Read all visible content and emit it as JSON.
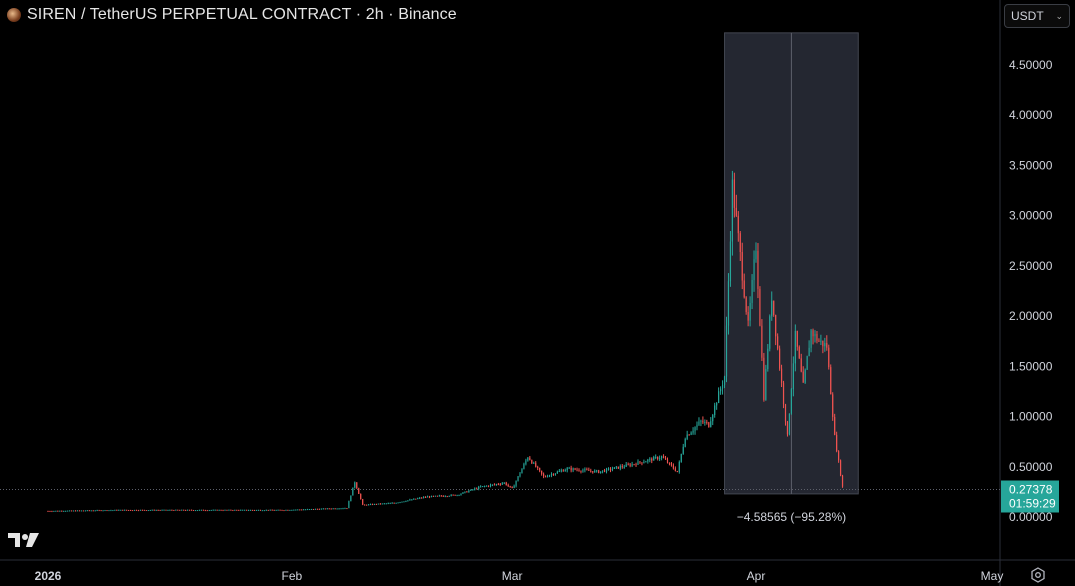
{
  "header": {
    "title": "SIREN / TetherUS PERPETUAL CONTRACT · 2h · Binance",
    "logo_icon": "siren-coin-icon"
  },
  "currency_select": {
    "value": "USDT",
    "icon": "chevron-down-icon"
  },
  "colors": {
    "background": "#000000",
    "up": "#26a69a",
    "down": "#ef5350",
    "measure_fill": "#2a2e39",
    "last_price_badge": "#26a69a"
  },
  "chart_data": {
    "type": "candlestick",
    "symbol": "SIREN / TetherUS PERPETUAL CONTRACT",
    "interval": "2h",
    "exchange": "Binance",
    "y_axis": {
      "ticks": [
        "4.50000",
        "4.00000",
        "3.50000",
        "3.00000",
        "2.50000",
        "2.00000",
        "1.50000",
        "1.00000",
        "0.50000",
        "0.00000"
      ],
      "range": [
        -0.05,
        4.8
      ]
    },
    "x_axis": {
      "labels": [
        "2026",
        "Feb",
        "Mar",
        "Apr",
        "May"
      ],
      "range": [
        "2026-01-01",
        "2026-05-01"
      ]
    },
    "series_path": [
      [
        "2026-01-01",
        0.06
      ],
      [
        "2026-01-10",
        0.07
      ],
      [
        "2026-01-20",
        0.07
      ],
      [
        "2026-01-31",
        0.07
      ],
      [
        "2026-02-08",
        0.09
      ],
      [
        "2026-02-09",
        0.35
      ],
      [
        "2026-02-10",
        0.12
      ],
      [
        "2026-02-14",
        0.14
      ],
      [
        "2026-02-18",
        0.2
      ],
      [
        "2026-02-22",
        0.22
      ],
      [
        "2026-02-25",
        0.3
      ],
      [
        "2026-02-28",
        0.34
      ],
      [
        "2026-03-01",
        0.28
      ],
      [
        "2026-03-03",
        0.6
      ],
      [
        "2026-03-05",
        0.4
      ],
      [
        "2026-03-08",
        0.48
      ],
      [
        "2026-03-12",
        0.45
      ],
      [
        "2026-03-16",
        0.52
      ],
      [
        "2026-03-20",
        0.6
      ],
      [
        "2026-03-22",
        0.45
      ],
      [
        "2026-03-23",
        0.8
      ],
      [
        "2026-03-25",
        0.95
      ],
      [
        "2026-03-26",
        0.92
      ],
      [
        "2026-03-28",
        1.4
      ],
      [
        "2026-03-29",
        3.3
      ],
      [
        "2026-03-30",
        2.6
      ],
      [
        "2026-03-31",
        1.9
      ],
      [
        "2026-04-01",
        2.7
      ],
      [
        "2026-04-02",
        1.2
      ],
      [
        "2026-04-03",
        2.2
      ],
      [
        "2026-04-04",
        1.5
      ],
      [
        "2026-04-05",
        0.8
      ],
      [
        "2026-04-06",
        1.8
      ],
      [
        "2026-04-07",
        1.3
      ],
      [
        "2026-04-08",
        1.85
      ],
      [
        "2026-04-09",
        1.75
      ],
      [
        "2026-04-10",
        1.7
      ],
      [
        "2026-04-11",
        0.8
      ],
      [
        "2026-04-12",
        0.3
      ],
      [
        "2026-04-12",
        0.27
      ]
    ],
    "last_price": {
      "value": "0.27378",
      "countdown": "01:59:29"
    },
    "measure": {
      "label": "−4.58565 (−95.28%)",
      "change": -4.58565,
      "change_pct": -95.28,
      "from_date": "2026-03-28",
      "to_date": "2026-04-14",
      "price_high": 4.82,
      "price_low": 0.23
    }
  },
  "footer": {
    "logo_icon": "tradingview-logo-icon",
    "settings_icon": "gear-icon"
  }
}
